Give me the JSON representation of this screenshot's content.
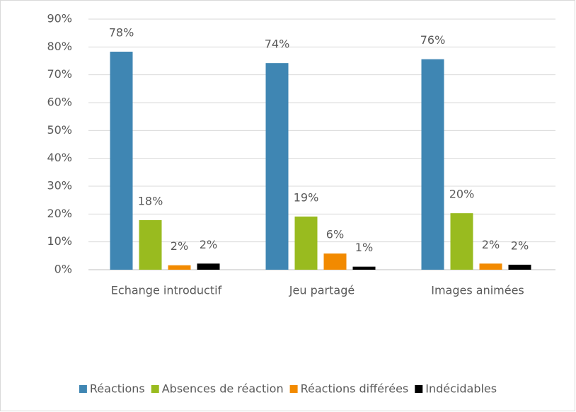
{
  "chart_data": {
    "type": "bar",
    "categories": [
      "Echange introductif",
      "Jeu partagé",
      "Images animées"
    ],
    "series": [
      {
        "name": "Réactions",
        "color": "#3f86b3",
        "values": [
          78.3,
          74.2,
          75.6
        ],
        "value_labels": [
          "78%",
          "74%",
          "76%"
        ]
      },
      {
        "name": "Absences de réaction",
        "color": "#99bb1f",
        "values": [
          17.8,
          19.1,
          20.3
        ],
        "value_labels": [
          "18%",
          "19%",
          "20%"
        ]
      },
      {
        "name": "Réactions différées",
        "color": "#f28a00",
        "values": [
          1.6,
          5.8,
          2.2
        ],
        "value_labels": [
          "2%",
          "6%",
          "2%"
        ]
      },
      {
        "name": "Indécidables",
        "color": "#000000",
        "values": [
          2.2,
          1.1,
          1.8
        ],
        "value_labels": [
          "2%",
          "1%",
          "2%"
        ]
      }
    ],
    "ylim": [
      0,
      90
    ],
    "yticks": [
      {
        "value": 0,
        "label": "0%"
      },
      {
        "value": 10,
        "label": "10%"
      },
      {
        "value": 20,
        "label": "20%"
      },
      {
        "value": 30,
        "label": "30%"
      },
      {
        "value": 40,
        "label": "40%"
      },
      {
        "value": 50,
        "label": "50%"
      },
      {
        "value": 60,
        "label": "60%"
      },
      {
        "value": 70,
        "label": "70%"
      },
      {
        "value": 80,
        "label": "80%"
      },
      {
        "value": 90,
        "label": "90%"
      }
    ],
    "grid": true,
    "legend": "bottom"
  }
}
